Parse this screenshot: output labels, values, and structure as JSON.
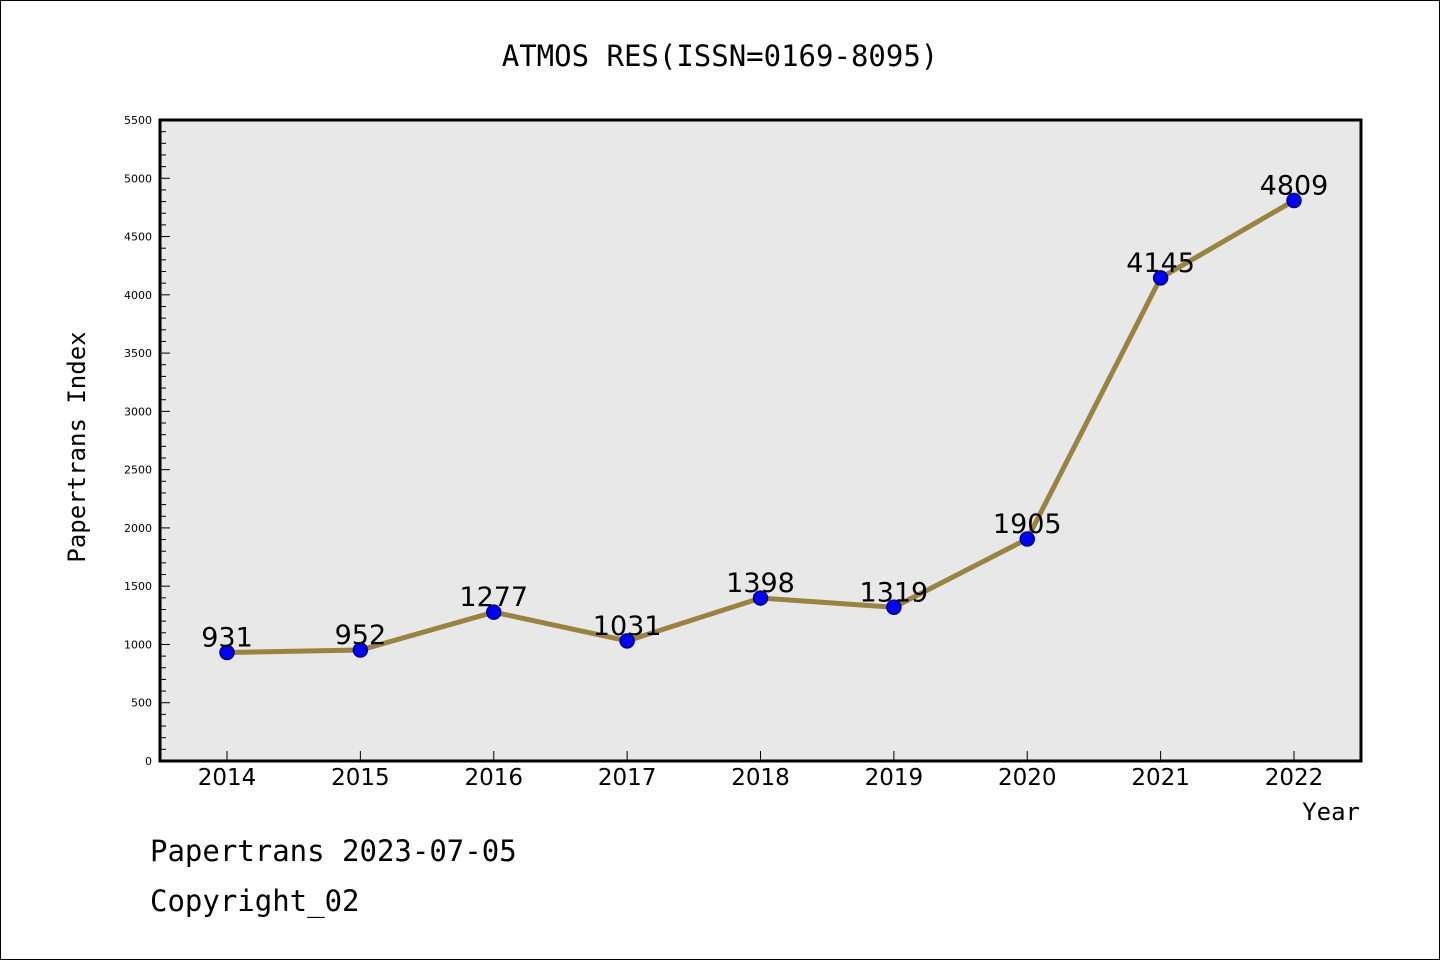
{
  "chart_data": {
    "type": "line",
    "title": "ATMOS RES(ISSN=0169-8095)",
    "xlabel": "Year",
    "ylabel": "Papertrans Index",
    "categories": [
      "2014",
      "2015",
      "2016",
      "2017",
      "2018",
      "2019",
      "2020",
      "2021",
      "2022"
    ],
    "values": [
      931,
      952,
      1277,
      1031,
      1398,
      1319,
      1905,
      4145,
      4809
    ],
    "data_labels": [
      "931",
      "952",
      "1277",
      "1031",
      "1398",
      "1319",
      "1905",
      "4145",
      "4809"
    ],
    "ylim": [
      0,
      5500
    ],
    "yticks": [
      0,
      500,
      1000,
      1500,
      2000,
      2500,
      3000,
      3500,
      4000,
      4500,
      5000,
      5500
    ],
    "ytick_labels": [
      "0",
      "500",
      "1000",
      "1500",
      "2000",
      "2500",
      "3000",
      "3500",
      "4000",
      "4500",
      "5000",
      "5500"
    ],
    "grid": false,
    "colors": {
      "plot_background": "#e8e8e8",
      "line": "#9a8240",
      "marker_fill": "#0000ff",
      "marker_edge": "#000080"
    }
  },
  "footer": {
    "source": "Papertrans 2023-07-05",
    "copyright": "Copyright_02"
  }
}
